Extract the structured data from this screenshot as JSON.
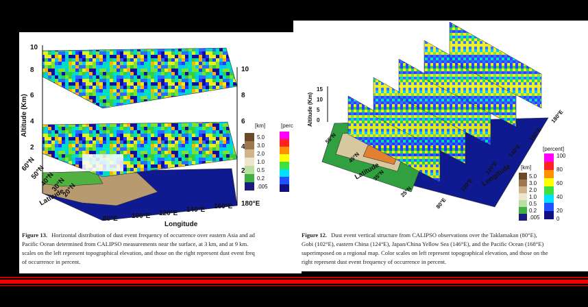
{
  "left_figure": {
    "y_axis_label": "Altitude (Km)",
    "left_ticks": [
      "10",
      "8",
      "6",
      "4",
      "2"
    ],
    "right_ticks": [
      "10",
      "8",
      "6",
      "4",
      "2"
    ],
    "km_unit": "[km]",
    "km_legend": [
      "5.0",
      "3.0",
      "2.0",
      "1.0",
      "0.5",
      "0.2",
      ".005"
    ],
    "percent_unit": "[percent]",
    "latitudes": [
      "60°N",
      "50°N",
      "40°N",
      "30°N",
      "20°N"
    ],
    "latitude_label": "Latitude",
    "longitudes": [
      "80°E",
      "100°E",
      "120°E",
      "140°E",
      "160°E",
      "180°E"
    ],
    "longitude_label": "Longitude",
    "caption": {
      "label": "Figure 13.",
      "lines": [
        "Horizontal distribution of dust event frequency of occurrence over eastern Asia and ad",
        "Pacific Ocean determined from CALIPSO measurements near the surface, at 3 km, and at 9 km.",
        "scales on the left represent topographical elevation, and those on the right represent dust event freq",
        "of occurrence in percent."
      ]
    }
  },
  "right_figure": {
    "y_axis_label": "Altitude (Km)",
    "altitude_ticks": [
      "15",
      "10",
      "5",
      "0"
    ],
    "km_unit": "[km]",
    "km_legend": [
      "5.0",
      "3.0",
      "2.0",
      "1.0",
      "0.5",
      "0.2",
      ".005"
    ],
    "percent_unit": "[percent]",
    "percent_legend": [
      "100",
      "80",
      "60",
      "40",
      "20",
      "0"
    ],
    "latitudes": [
      "55°N",
      "45°N",
      "35°N",
      "25°N"
    ],
    "latitude_label": "Latitude",
    "longitudes": [
      "80°E",
      "100°E",
      "120°E",
      "140°E",
      "160°E",
      "180°E"
    ],
    "longitude_label": "Longitude",
    "caption": {
      "label": "Figure 12.",
      "lines": [
        "Dust event vertical structure from CALIPSO observations over the Taklamakan (80°E),",
        "Gobi (102°E), eastern China (124°E), Japan/China Yellow Sea (146°E), and the Pacific Ocean (168°E)",
        "superimposed on a regional map. Color scales on left represent topographical elevation, and those on the",
        "right represent dust event frequency of occurrence in percent."
      ]
    }
  }
}
